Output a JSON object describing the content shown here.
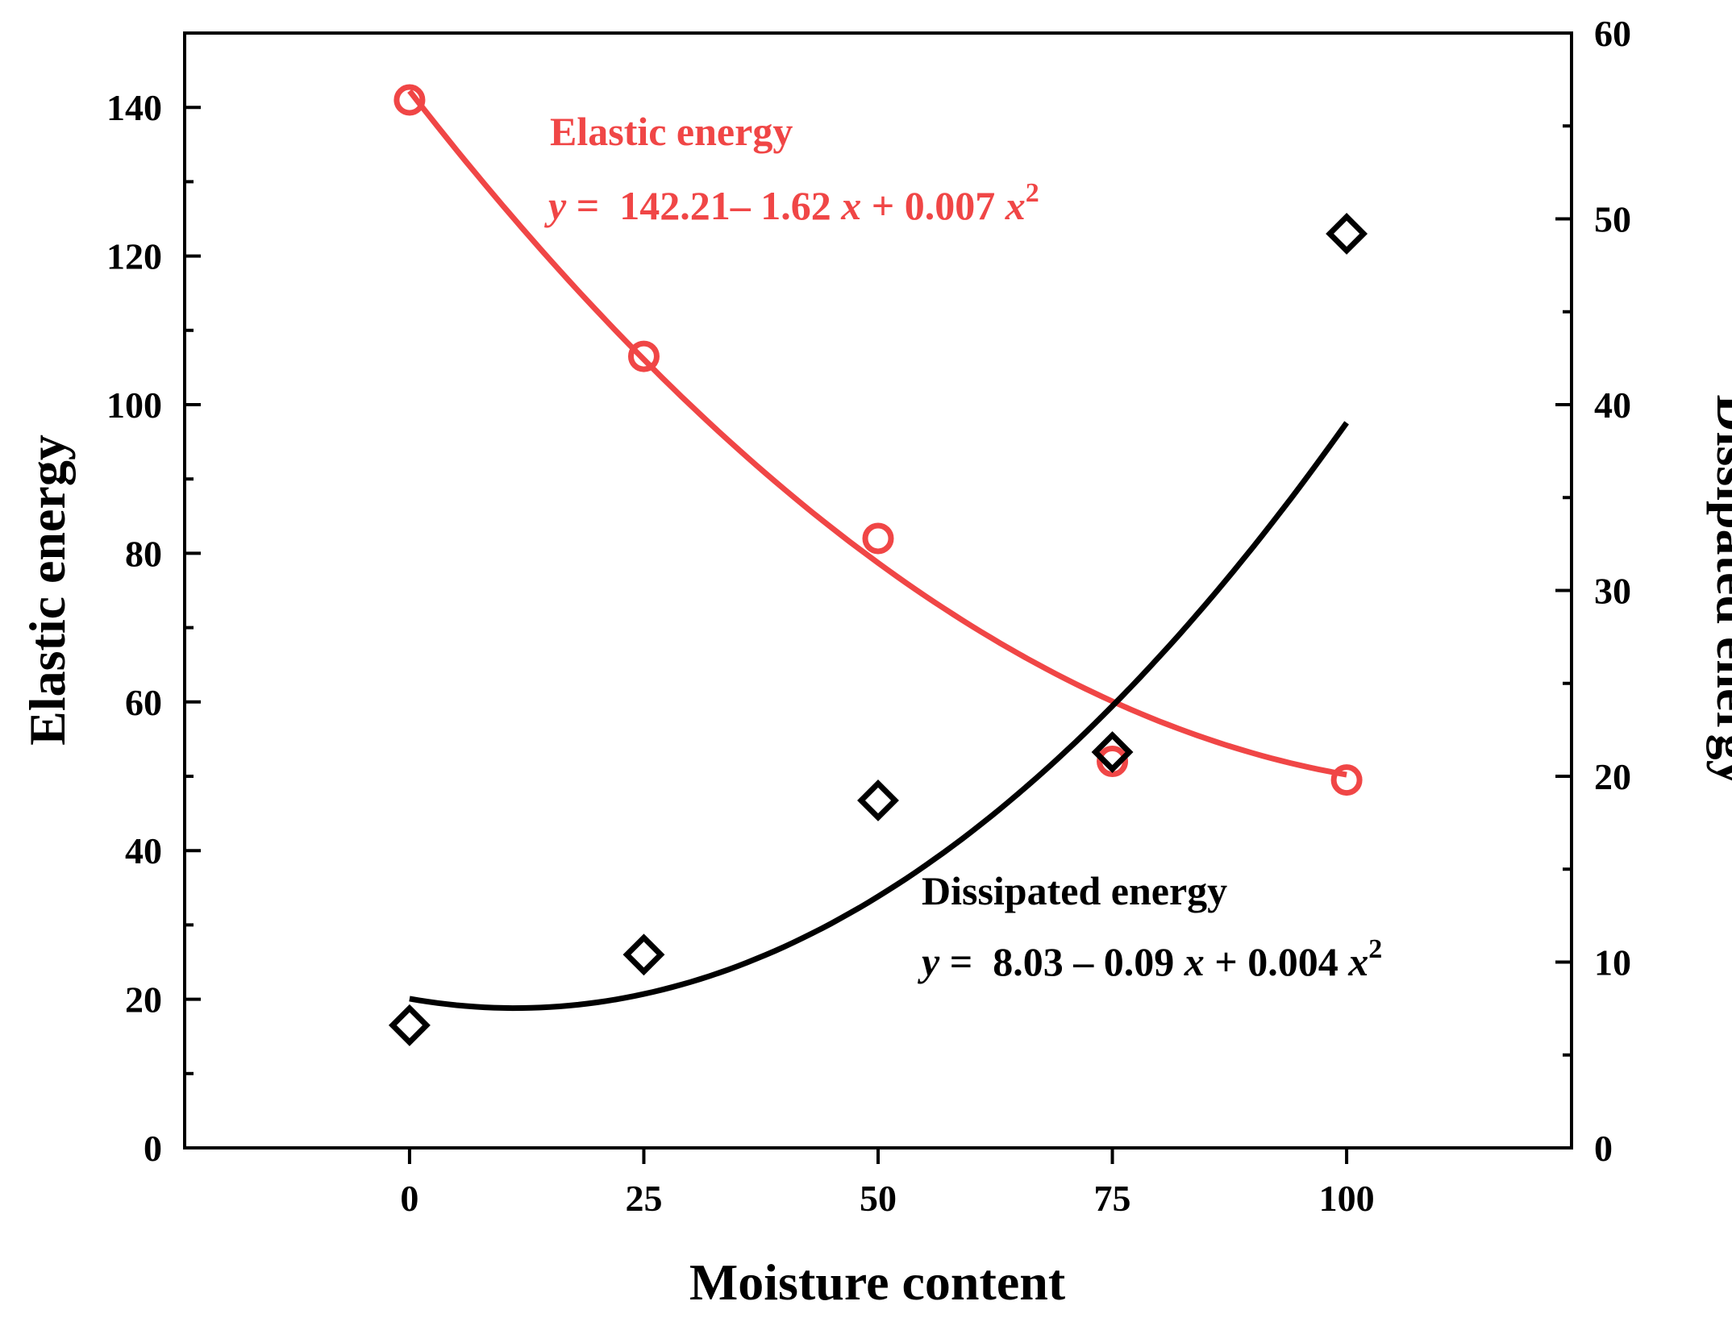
{
  "chart_data": {
    "type": "scatter",
    "xlabel": "Moisture content",
    "ylabel_left": "Elastic energy",
    "ylabel_right": "Dissipated energy",
    "xlim": [
      -24,
      124
    ],
    "ylim_left": [
      0,
      150
    ],
    "ylim_right": [
      0,
      60
    ],
    "x_ticks": [
      0,
      25,
      50,
      75,
      100
    ],
    "y_left_ticks": [
      0,
      20,
      40,
      60,
      80,
      100,
      120,
      140
    ],
    "y_right_ticks": [
      0,
      10,
      20,
      30,
      40,
      50,
      60
    ],
    "series": [
      {
        "name": "Elastic energy",
        "axis": "left",
        "marker": "circle",
        "color": "#f04646",
        "x": [
          0,
          25,
          50,
          75,
          100
        ],
        "values": [
          141,
          106.5,
          82,
          52,
          49.5
        ],
        "fit": {
          "a": 142.21,
          "b": -1.62,
          "c": 0.007
        }
      },
      {
        "name": "Dissipated energy",
        "axis": "right",
        "marker": "diamond",
        "color": "#000000",
        "x": [
          0,
          25,
          50,
          75,
          100
        ],
        "values": [
          6.6,
          10.4,
          18.7,
          21.3,
          49.2
        ],
        "fit": {
          "a": 8.03,
          "b": -0.09,
          "c": 0.004
        }
      }
    ],
    "annotations": {
      "elastic_title": "Elastic energy",
      "elastic_eq_y": "y",
      "elastic_eq_eq": " =  142.21– 1.62 ",
      "elastic_eq_x": "x",
      "elastic_eq_plus": " + 0.007 ",
      "elastic_eq_x2": "x",
      "elastic_eq_sup": "2",
      "dissipated_title": "Dissipated energy",
      "dissipated_eq_y": "y",
      "dissipated_eq_eq": " =  8.03 – 0.09 ",
      "dissipated_eq_x": "x",
      "dissipated_eq_plus": " + 0.004 ",
      "dissipated_eq_x2": "x",
      "dissipated_eq_sup": "2"
    }
  }
}
